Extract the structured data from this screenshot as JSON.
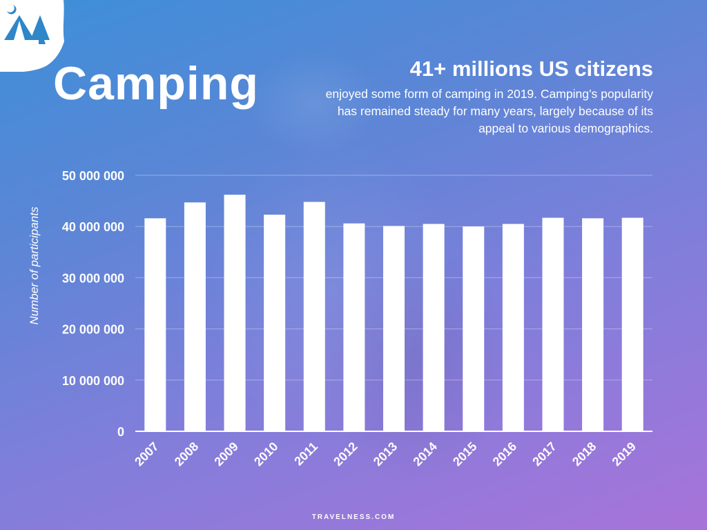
{
  "header": {
    "title": "Camping",
    "highlight": "41+ millions US citizens",
    "description": "enjoyed some form of camping in 2019. Camping’s popularity has remained steady for many years, largely because of its appeal to various demographics."
  },
  "footer": {
    "credit": "TRAVELNESS.COM"
  },
  "icons": {
    "badge": "tent-icon"
  },
  "colors": {
    "bar": "#ffffff",
    "text": "#ffffff"
  },
  "chart_data": {
    "type": "bar",
    "title": "",
    "xlabel": "",
    "ylabel": "Number of participants",
    "ylim": [
      0,
      50000000
    ],
    "yticks": [
      0,
      10000000,
      20000000,
      30000000,
      40000000,
      50000000
    ],
    "ytick_labels": [
      "0",
      "10 000 000",
      "20 000 000",
      "30 000 000",
      "40 000 000",
      "50 000 000"
    ],
    "grid": true,
    "categories": [
      "2007",
      "2008",
      "2009",
      "2010",
      "2011",
      "2012",
      "2013",
      "2014",
      "2015",
      "2016",
      "2017",
      "2018",
      "2019"
    ],
    "values": [
      41600000,
      44700000,
      46200000,
      42300000,
      44800000,
      40600000,
      40100000,
      40500000,
      40000000,
      40500000,
      41700000,
      41600000,
      41700000
    ]
  }
}
